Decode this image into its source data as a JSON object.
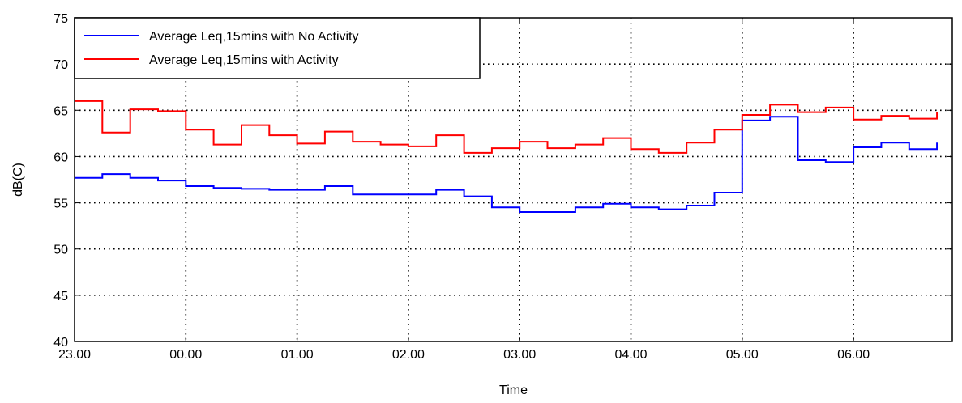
{
  "chart_data": {
    "type": "line",
    "step": true,
    "xlabel": "Time",
    "ylabel": "dB(C)",
    "ylim": [
      40,
      75
    ],
    "xlim": [
      "23.00",
      "06.45"
    ],
    "y_ticks": [
      40,
      45,
      50,
      55,
      60,
      65,
      70,
      75
    ],
    "x_ticks": [
      "23.00",
      "00.00",
      "01.00",
      "02.00",
      "03.00",
      "04.00",
      "05.00",
      "06.00"
    ],
    "grid": true,
    "grid_style": "dotted",
    "legend_position": "top-left",
    "x": [
      "23.00",
      "23.15",
      "23.30",
      "23.45",
      "00.00",
      "00.15",
      "00.30",
      "00.45",
      "01.00",
      "01.15",
      "01.30",
      "01.45",
      "02.00",
      "02.15",
      "02.30",
      "02.45",
      "03.00",
      "03.15",
      "03.30",
      "03.45",
      "04.00",
      "04.15",
      "04.30",
      "04.45",
      "05.00",
      "05.15",
      "05.30",
      "05.45",
      "06.00",
      "06.15",
      "06.30",
      "06.45"
    ],
    "series": [
      {
        "name": "Average Leq,15mins with No Activity",
        "color": "#0000ff",
        "values": [
          57.7,
          58.1,
          57.7,
          57.4,
          56.8,
          56.6,
          56.5,
          56.4,
          56.4,
          56.8,
          55.9,
          55.9,
          55.9,
          56.4,
          55.7,
          54.5,
          54.0,
          54.0,
          54.5,
          54.9,
          54.5,
          54.3,
          54.7,
          56.1,
          63.9,
          64.3,
          59.6,
          59.4,
          61.0,
          61.5,
          60.8,
          61.5
        ]
      },
      {
        "name": "Average Leq,15mins with Activity",
        "color": "#ff0000",
        "values": [
          66.0,
          62.6,
          65.1,
          64.9,
          62.9,
          61.3,
          63.4,
          62.3,
          61.4,
          62.7,
          61.6,
          61.3,
          61.1,
          62.3,
          60.4,
          60.9,
          61.6,
          60.9,
          61.3,
          62.0,
          60.8,
          60.4,
          61.5,
          62.9,
          64.5,
          65.6,
          64.8,
          65.3,
          64.0,
          64.4,
          64.1,
          64.8
        ]
      }
    ]
  }
}
